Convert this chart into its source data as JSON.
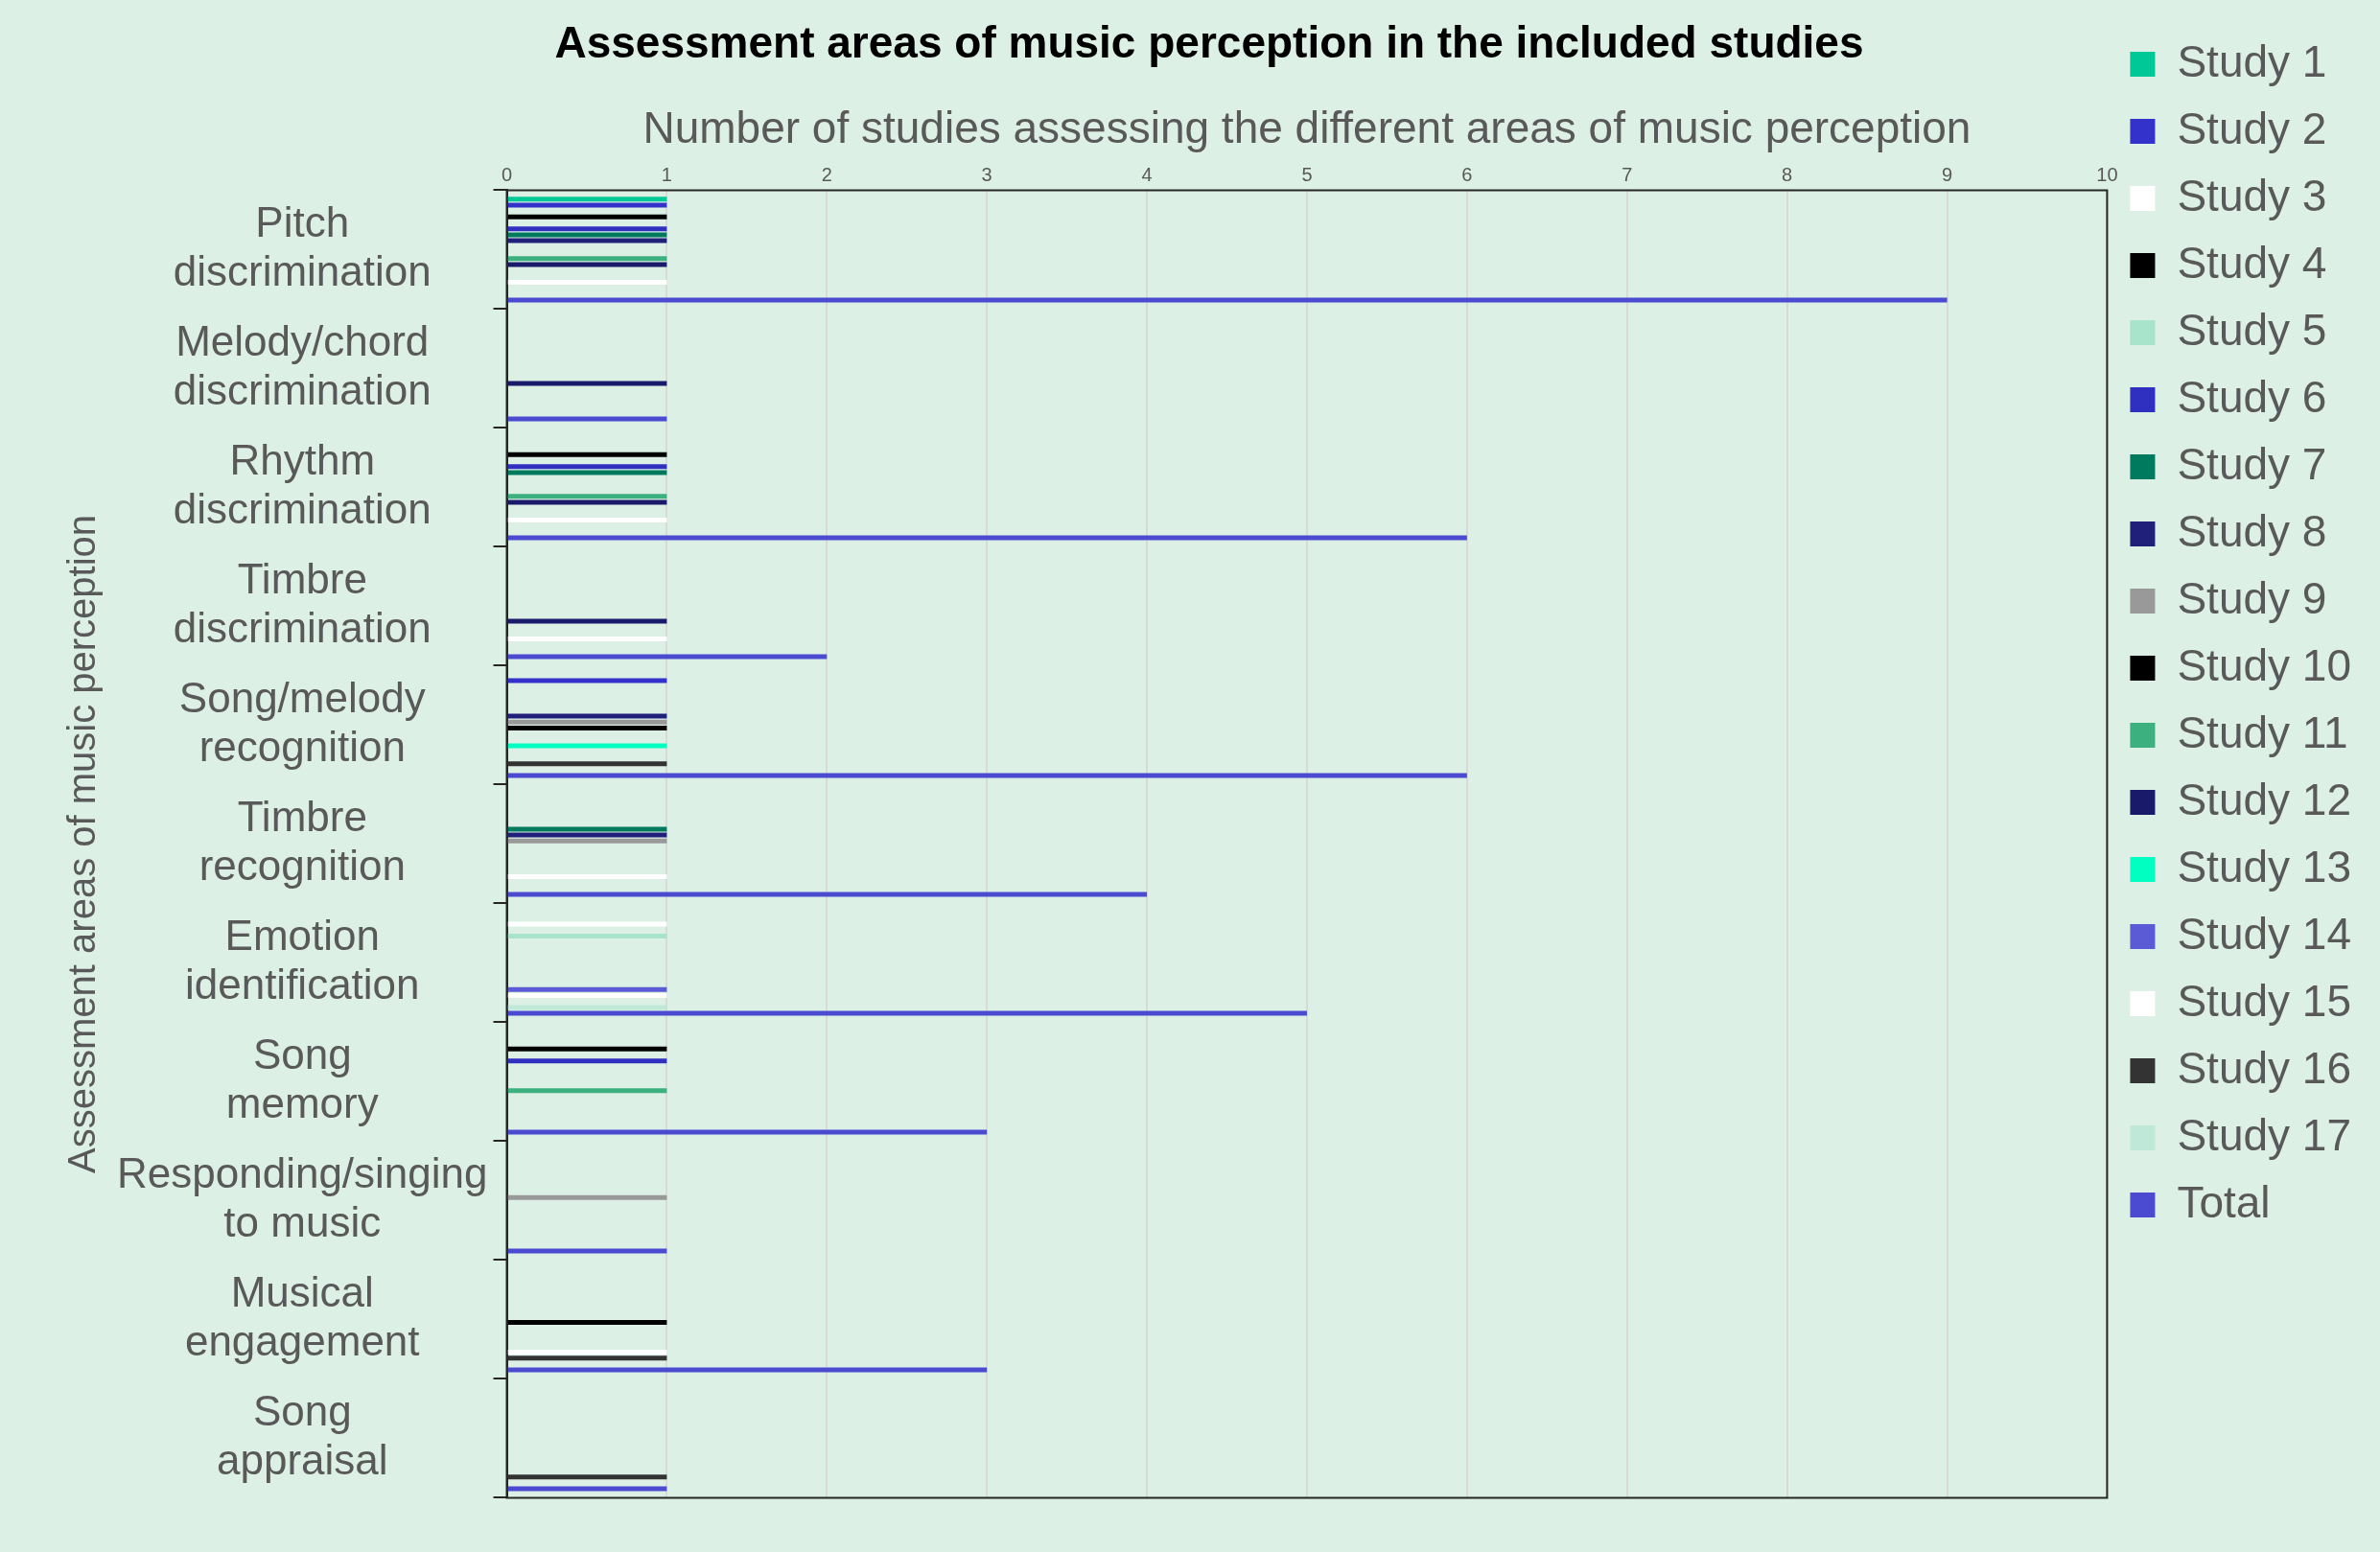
{
  "chart_data": {
    "type": "bar",
    "orientation": "horizontal",
    "title": "Assessment areas of music perception in the included studies",
    "xlabel": "Number of studies assessing the different areas of music perception",
    "ylabel": "Assessment areas of music perception",
    "categories": [
      "Pitch discrimination",
      "Melody/chord discrimination",
      "Rhythm discrimination",
      "Timbre discrimination",
      "Song/melody recognition",
      "Timbre recognition",
      "Emotion identification",
      "Song memory",
      "Responding/singing to music",
      "Musical engagement",
      "Song appraisal"
    ],
    "xlim": [
      0,
      10
    ],
    "xticks": [
      0,
      1,
      2,
      3,
      4,
      5,
      6,
      7,
      8,
      9,
      10
    ],
    "grid": "x",
    "legend": "right",
    "series": [
      {
        "name": "Study 1",
        "color": "#00c896",
        "values": [
          1,
          null,
          null,
          null,
          null,
          null,
          null,
          null,
          null,
          null,
          null
        ]
      },
      {
        "name": "Study 2",
        "color": "#3333cc",
        "values": [
          1,
          null,
          null,
          null,
          1,
          null,
          null,
          null,
          null,
          null,
          null
        ]
      },
      {
        "name": "Study 3",
        "color": "#ffffff",
        "values": [
          null,
          null,
          null,
          null,
          null,
          null,
          1,
          null,
          null,
          null,
          null
        ]
      },
      {
        "name": "Study 4",
        "color": "#000000",
        "values": [
          1,
          null,
          1,
          null,
          null,
          null,
          null,
          1,
          null,
          null,
          null
        ]
      },
      {
        "name": "Study 5",
        "color": "#a8e4cc",
        "values": [
          null,
          null,
          null,
          null,
          null,
          null,
          1,
          null,
          null,
          null,
          null
        ]
      },
      {
        "name": "Study 6",
        "color": "#3030c0",
        "values": [
          1,
          null,
          1,
          null,
          null,
          null,
          null,
          1,
          null,
          null,
          null
        ]
      },
      {
        "name": "Study 7",
        "color": "#007a5e",
        "values": [
          1,
          null,
          1,
          null,
          null,
          1,
          null,
          null,
          null,
          null,
          null
        ]
      },
      {
        "name": "Study 8",
        "color": "#20207a",
        "values": [
          1,
          null,
          null,
          null,
          1,
          1,
          null,
          null,
          null,
          null,
          null
        ]
      },
      {
        "name": "Study 9",
        "color": "#999999",
        "values": [
          null,
          null,
          null,
          null,
          1,
          1,
          null,
          null,
          1,
          null,
          null
        ]
      },
      {
        "name": "Study 10",
        "color": "#000000",
        "values": [
          null,
          null,
          null,
          null,
          1,
          null,
          null,
          null,
          null,
          1,
          null
        ]
      },
      {
        "name": "Study 11",
        "color": "#3cb07e",
        "values": [
          1,
          null,
          1,
          null,
          null,
          null,
          null,
          1,
          null,
          null,
          null
        ]
      },
      {
        "name": "Study 12",
        "color": "#1a1a6a",
        "values": [
          1,
          1,
          1,
          1,
          null,
          null,
          null,
          null,
          null,
          null,
          null
        ]
      },
      {
        "name": "Study 13",
        "color": "#00ffc0",
        "values": [
          null,
          null,
          null,
          null,
          1,
          null,
          null,
          null,
          null,
          null,
          null
        ]
      },
      {
        "name": "Study 14",
        "color": "#5b5bd6",
        "values": [
          null,
          null,
          null,
          null,
          null,
          null,
          1,
          null,
          null,
          null,
          null
        ]
      },
      {
        "name": "Study 15",
        "color": "#ffffff",
        "values": [
          1,
          null,
          1,
          1,
          null,
          1,
          1,
          null,
          null,
          1,
          null
        ]
      },
      {
        "name": "Study 16",
        "color": "#333333",
        "values": [
          null,
          null,
          null,
          null,
          1,
          null,
          null,
          null,
          null,
          1,
          1
        ]
      },
      {
        "name": "Study 17",
        "color": "#bfe8d8",
        "values": [
          null,
          null,
          null,
          null,
          null,
          null,
          1,
          null,
          null,
          null,
          null
        ]
      },
      {
        "name": "Total",
        "color": "#4b4bd2",
        "values": [
          9,
          1,
          6,
          2,
          6,
          4,
          5,
          3,
          1,
          3,
          1
        ]
      }
    ]
  }
}
